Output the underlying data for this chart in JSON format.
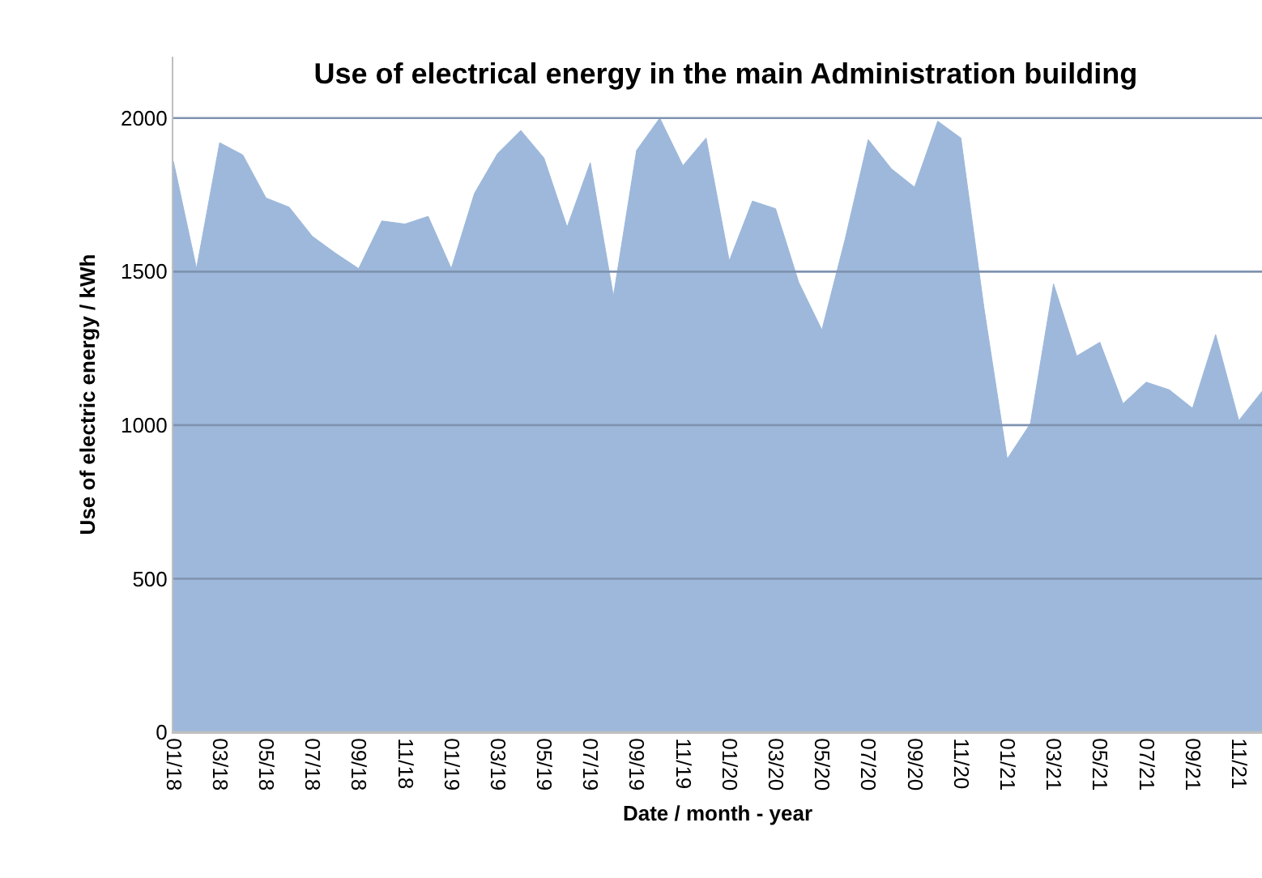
{
  "chart_data": {
    "type": "area",
    "title": "Use of electrical energy in the main Administration building",
    "xlabel": "Date / month - year",
    "ylabel": "Use of electric energy / kWh",
    "categories": [
      "01/18",
      null,
      "03/18",
      null,
      "05/18",
      null,
      "07/18",
      null,
      "09/18",
      null,
      "11/18",
      null,
      "01/19",
      null,
      "03/19",
      null,
      "05/19",
      null,
      "07/19",
      null,
      "09/19",
      null,
      "11/19",
      null,
      "01/20",
      null,
      "03/20",
      null,
      "05/20",
      null,
      "07/20",
      null,
      "09/20",
      null,
      "11/20",
      null,
      "01/21",
      null,
      "03/21",
      null,
      "05/21",
      null,
      "07/21",
      null,
      "09/21",
      null,
      "11/21",
      null
    ],
    "series": [
      {
        "color": "#9db8da",
        "values": [
          1860,
          1510,
          1920,
          1880,
          1740,
          1710,
          1615,
          1560,
          1510,
          1665,
          1655,
          1680,
          1510,
          1755,
          1885,
          1960,
          1870,
          1645,
          1855,
          1420,
          1895,
          2000,
          1845,
          1935,
          1535,
          1730,
          1705,
          1465,
          1310,
          1605,
          1930,
          1835,
          1775,
          1990,
          1935,
          1380,
          890,
          1005,
          1460,
          1225,
          1270,
          1070,
          1140,
          1115,
          1055,
          1295,
          1015,
          1110
        ]
      }
    ],
    "ylim": [
      0,
      2200
    ],
    "yticks": [
      0,
      500,
      1000,
      1500,
      2000
    ],
    "grid": "y"
  }
}
